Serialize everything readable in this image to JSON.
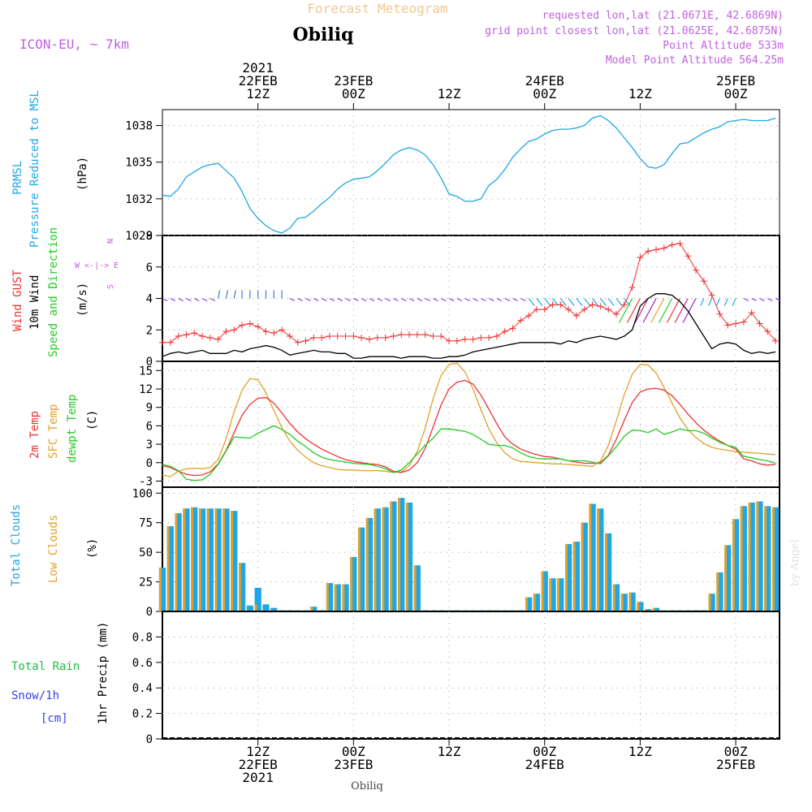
{
  "header": {
    "title": "Forecast Meteogram",
    "location": "Obiliq",
    "model": "ICON-EU, ~ 7km",
    "requested": "requested lon,lat (21.0671E, 42.6869N)",
    "grid_point": "grid point closest lon,lat (21.0625E, 42.6875N)",
    "point_altitude": "Point Altitude 533m",
    "model_altitude": "Model Point Altitude 564.25m"
  },
  "footer": {
    "location": "Obiliq",
    "watermark": "by Angel"
  },
  "colors": {
    "pressure": "#1ea7e6",
    "gust": "#ee3333",
    "wind": "#000000",
    "t2m": "#ee3333",
    "sfc": "#e3a02a",
    "dewpt": "#22cc22",
    "total_clouds": "#1ea7e6",
    "low_clouds": "#e3a02a",
    "rain": "#22bb44",
    "snow": "#3344ee",
    "arrows": "#8a3ad8",
    "title_col": "#f0c890",
    "info_col": "#c060e0"
  },
  "time_axis": {
    "top_labels": [
      {
        "h": 12,
        "lines": [
          "2021",
          "22FEB",
          "12Z"
        ]
      },
      {
        "h": 24,
        "lines": [
          "23FEB",
          "00Z"
        ]
      },
      {
        "h": 36,
        "lines": [
          "12Z"
        ]
      },
      {
        "h": 48,
        "lines": [
          "24FEB",
          "00Z"
        ]
      },
      {
        "h": 60,
        "lines": [
          "12Z"
        ]
      },
      {
        "h": 72,
        "lines": [
          "25FEB",
          "00Z"
        ]
      }
    ],
    "bottom_labels": [
      {
        "h": 12,
        "lines": [
          "12Z",
          "22FEB",
          "2021"
        ]
      },
      {
        "h": 24,
        "lines": [
          "00Z",
          "23FEB"
        ]
      },
      {
        "h": 36,
        "lines": [
          "12Z"
        ]
      },
      {
        "h": 48,
        "lines": [
          "00Z",
          "24FEB"
        ]
      },
      {
        "h": 60,
        "lines": [
          "12Z"
        ]
      },
      {
        "h": 72,
        "lines": [
          "00Z",
          "25FEB"
        ]
      }
    ]
  },
  "chart_data": [
    {
      "type": "line",
      "panel": "pressure",
      "ylabel_lines": [
        "PRMSL",
        "Pressure Reduced to MSL"
      ],
      "unit": "(hPa)",
      "ylim": [
        1029,
        1039.3
      ],
      "yticks": [
        1038,
        1035,
        1032,
        1029
      ],
      "ytick_labels": [
        "1038",
        "1035",
        "1032",
        "1029"
      ],
      "x": [
        0,
        1,
        2,
        3,
        4,
        5,
        6,
        7,
        8,
        9,
        10,
        11,
        12,
        13,
        14,
        15,
        16,
        17,
        18,
        19,
        20,
        21,
        22,
        23,
        24,
        25,
        26,
        27,
        28,
        29,
        30,
        31,
        32,
        33,
        34,
        35,
        36,
        37,
        38,
        39,
        40,
        41,
        42,
        43,
        44,
        45,
        46,
        47,
        48,
        49,
        50,
        51,
        52,
        53,
        54,
        55,
        56,
        57,
        58,
        59,
        60,
        61,
        62,
        63,
        64,
        65,
        66,
        67,
        68,
        69,
        70,
        71,
        72,
        73,
        74,
        75,
        76,
        77
      ],
      "series": [
        {
          "values": [
            1032.3,
            1032.2,
            1032.8,
            1033.8,
            1034.2,
            1034.6,
            1034.8,
            1034.9,
            1034.3,
            1033.7,
            1032.6,
            1031.2,
            1030.4,
            1029.8,
            1029.4,
            1029.2,
            1029.6,
            1030.4,
            1030.5,
            1031.0,
            1031.6,
            1032.1,
            1032.8,
            1033.3,
            1033.6,
            1033.7,
            1033.8,
            1034.3,
            1034.9,
            1035.6,
            1036.0,
            1036.2,
            1036.0,
            1035.6,
            1034.8,
            1033.7,
            1032.4,
            1032.2,
            1031.8,
            1031.8,
            1032.0,
            1033.1,
            1033.6,
            1034.4,
            1035.4,
            1036.1,
            1036.7,
            1036.9,
            1037.3,
            1037.6,
            1037.7,
            1037.7,
            1037.8,
            1038.0,
            1038.6,
            1038.8,
            1038.4,
            1037.8,
            1037.0,
            1036.2,
            1035.3,
            1034.6,
            1034.5,
            1034.8,
            1035.7,
            1036.5,
            1036.6,
            1037.0,
            1037.4,
            1037.7,
            1037.9,
            1038.3,
            1038.4,
            1038.5,
            1038.4,
            1038.4,
            1038.4,
            1038.6
          ]
        }
      ]
    },
    {
      "type": "line",
      "panel": "wind",
      "ylabel_lines": [
        "Wind GUST",
        "10m Wind",
        "Speed and Direction"
      ],
      "unit": "(m/s)",
      "compass": [
        "N",
        "W <-|-> E",
        "S"
      ],
      "ylim": [
        0,
        8
      ],
      "yticks": [
        0,
        2,
        4,
        6,
        8
      ],
      "ytick_labels": [
        "0",
        "2",
        "4",
        "6",
        "8"
      ],
      "x": [
        0,
        1,
        2,
        3,
        4,
        5,
        6,
        7,
        8,
        9,
        10,
        11,
        12,
        13,
        14,
        15,
        16,
        17,
        18,
        19,
        20,
        21,
        22,
        23,
        24,
        25,
        26,
        27,
        28,
        29,
        30,
        31,
        32,
        33,
        34,
        35,
        36,
        37,
        38,
        39,
        40,
        41,
        42,
        43,
        44,
        45,
        46,
        47,
        48,
        49,
        50,
        51,
        52,
        53,
        54,
        55,
        56,
        57,
        58,
        59,
        60,
        61,
        62,
        63,
        64,
        65,
        66,
        67,
        68,
        69,
        70,
        71,
        72,
        73,
        74,
        75,
        76,
        77
      ],
      "series": [
        {
          "name": "Wind GUST",
          "values": [
            1.2,
            1.2,
            1.6,
            1.7,
            1.8,
            1.6,
            1.5,
            1.4,
            1.9,
            2.0,
            2.3,
            2.4,
            2.2,
            1.9,
            1.8,
            2.0,
            1.6,
            1.2,
            1.3,
            1.5,
            1.5,
            1.6,
            1.6,
            1.6,
            1.6,
            1.5,
            1.4,
            1.5,
            1.5,
            1.6,
            1.7,
            1.7,
            1.7,
            1.7,
            1.6,
            1.6,
            1.3,
            1.3,
            1.4,
            1.4,
            1.5,
            1.5,
            1.6,
            1.9,
            2.1,
            2.6,
            2.9,
            3.3,
            3.3,
            3.6,
            3.6,
            3.3,
            2.9,
            3.3,
            3.6,
            3.5,
            3.3,
            3.0,
            3.6,
            4.7,
            6.6,
            7.0,
            7.1,
            7.2,
            7.4,
            7.5,
            6.7,
            5.8,
            5.1,
            4.2,
            3.0,
            2.3,
            2.4,
            2.5,
            3.1,
            2.4,
            1.9,
            1.3
          ]
        },
        {
          "name": "10m Wind",
          "values": [
            0.3,
            0.5,
            0.6,
            0.5,
            0.6,
            0.7,
            0.5,
            0.5,
            0.5,
            0.7,
            0.6,
            0.8,
            0.9,
            1.0,
            0.9,
            0.7,
            0.4,
            0.5,
            0.6,
            0.7,
            0.6,
            0.6,
            0.5,
            0.5,
            0.2,
            0.2,
            0.3,
            0.3,
            0.3,
            0.3,
            0.2,
            0.3,
            0.3,
            0.3,
            0.2,
            0.2,
            0.3,
            0.3,
            0.4,
            0.6,
            0.7,
            0.8,
            0.9,
            1.0,
            1.1,
            1.2,
            1.2,
            1.2,
            1.2,
            1.2,
            1.1,
            1.3,
            1.2,
            1.4,
            1.5,
            1.6,
            1.5,
            1.4,
            1.6,
            2.0,
            3.5,
            4.0,
            4.3,
            4.3,
            4.2,
            3.8,
            3.2,
            2.4,
            1.6,
            0.8,
            1.1,
            1.2,
            1.1,
            0.7,
            0.5,
            0.6,
            0.5,
            0.6
          ]
        }
      ],
      "direction_arrows": "wind direction barbs along 4 m/s line"
    },
    {
      "type": "line",
      "panel": "temperature",
      "ylabel_lines": [
        "2m Temp",
        "SFC Temp",
        "dewpt Temp"
      ],
      "unit": "(C)",
      "ylim": [
        -4,
        16.5
      ],
      "yticks": [
        -3,
        0,
        3,
        6,
        9,
        12,
        15
      ],
      "ytick_labels": [
        "-3",
        "0",
        "3",
        "6",
        "9",
        "12",
        "15"
      ],
      "x": [
        0,
        1,
        2,
        3,
        4,
        5,
        6,
        7,
        8,
        9,
        10,
        11,
        12,
        13,
        14,
        15,
        16,
        17,
        18,
        19,
        20,
        21,
        22,
        23,
        24,
        25,
        26,
        27,
        28,
        29,
        30,
        31,
        32,
        33,
        34,
        35,
        36,
        37,
        38,
        39,
        40,
        41,
        42,
        43,
        44,
        45,
        46,
        47,
        48,
        49,
        50,
        51,
        52,
        53,
        54,
        55,
        56,
        57,
        58,
        59,
        60,
        61,
        62,
        63,
        64,
        65,
        66,
        67,
        68,
        69,
        70,
        71,
        72,
        73,
        74,
        75,
        76,
        77
      ],
      "series": [
        {
          "name": "2m Temp",
          "values": [
            -0.5,
            -0.8,
            -1.4,
            -1.9,
            -2.1,
            -2.0,
            -1.5,
            -0.2,
            2.0,
            4.9,
            7.7,
            9.5,
            10.5,
            10.6,
            9.7,
            8.1,
            6.4,
            5.0,
            3.9,
            3.0,
            2.2,
            1.6,
            1.0,
            0.5,
            0.2,
            0.0,
            -0.2,
            -0.3,
            -0.7,
            -1.4,
            -1.6,
            -1.2,
            0.0,
            2.3,
            5.8,
            9.4,
            12.0,
            13.1,
            13.4,
            12.8,
            11.0,
            8.7,
            6.3,
            4.2,
            3.0,
            2.2,
            1.7,
            1.3,
            1.0,
            0.9,
            0.6,
            0.3,
            0.1,
            -0.1,
            -0.1,
            0.0,
            1.2,
            3.8,
            6.9,
            9.8,
            11.5,
            12.0,
            12.1,
            11.8,
            10.9,
            9.5,
            7.9,
            6.5,
            5.3,
            4.3,
            3.5,
            2.8,
            2.2,
            0.6,
            0.3,
            -0.2,
            -0.4,
            -0.3
          ]
        },
        {
          "name": "SFC Temp",
          "values": [
            -2.0,
            -2.3,
            -1.4,
            -1.0,
            -0.9,
            -1.0,
            -0.8,
            0.5,
            3.9,
            8.3,
            11.8,
            13.7,
            13.5,
            11.4,
            8.5,
            5.7,
            3.5,
            2.0,
            0.9,
            0.0,
            -0.5,
            -0.8,
            -1.1,
            -1.2,
            -1.2,
            -1.3,
            -1.3,
            -1.3,
            -1.4,
            -1.6,
            -1.5,
            -0.5,
            1.8,
            5.6,
            10.4,
            14.2,
            16.0,
            16.2,
            14.8,
            12.0,
            8.6,
            5.5,
            3.2,
            1.6,
            0.6,
            0.2,
            0.1,
            0.0,
            -0.1,
            -0.2,
            -0.2,
            -0.3,
            -0.4,
            -0.5,
            -0.6,
            0.2,
            2.8,
            6.8,
            11.1,
            14.4,
            16.0,
            15.9,
            14.6,
            12.3,
            9.7,
            7.3,
            5.4,
            4.1,
            3.1,
            2.5,
            2.2,
            2.0,
            1.8,
            1.7,
            1.6,
            1.5,
            1.4,
            1.3
          ]
        },
        {
          "name": "dewpt Temp",
          "values": [
            -0.3,
            -0.6,
            -1.3,
            -2.7,
            -2.9,
            -2.8,
            -1.9,
            -0.3,
            1.9,
            4.2,
            4.1,
            4.0,
            4.8,
            5.4,
            6.0,
            5.4,
            4.6,
            3.5,
            2.6,
            1.6,
            0.9,
            0.5,
            0.3,
            0.1,
            -0.1,
            -0.2,
            -0.3,
            -0.6,
            -1.0,
            -1.6,
            -1.2,
            0.0,
            1.4,
            2.8,
            4.0,
            5.5,
            5.5,
            5.3,
            5.1,
            4.6,
            3.8,
            3.0,
            2.8,
            2.8,
            2.4,
            1.6,
            1.0,
            0.7,
            0.6,
            0.6,
            0.6,
            0.3,
            0.3,
            0.3,
            0.1,
            -0.2,
            1.1,
            2.6,
            4.3,
            5.3,
            5.2,
            4.9,
            5.5,
            4.6,
            5.0,
            5.5,
            5.2,
            5.2,
            4.8,
            4.0,
            3.3,
            2.8,
            2.5,
            1.0,
            0.8,
            0.5,
            0.3,
            -0.1
          ]
        }
      ]
    },
    {
      "type": "bar",
      "panel": "clouds",
      "ylabel_lines": [
        "Total Clouds",
        "Low Clouds"
      ],
      "unit": "(%)",
      "ylim": [
        0,
        105
      ],
      "yticks": [
        0,
        25,
        50,
        75,
        100
      ],
      "ytick_labels": [
        "0",
        "25",
        "50",
        "75",
        "100"
      ],
      "x": [
        0,
        1,
        2,
        3,
        4,
        5,
        6,
        7,
        8,
        9,
        10,
        11,
        12,
        13,
        14,
        15,
        16,
        17,
        18,
        19,
        20,
        21,
        22,
        23,
        24,
        25,
        26,
        27,
        28,
        29,
        30,
        31,
        32,
        33,
        34,
        35,
        36,
        37,
        38,
        39,
        40,
        41,
        42,
        43,
        44,
        45,
        46,
        47,
        48,
        49,
        50,
        51,
        52,
        53,
        54,
        55,
        56,
        57,
        58,
        59,
        60,
        61,
        62,
        63,
        64,
        65,
        66,
        67,
        68,
        69,
        70,
        71,
        72,
        73,
        74,
        75,
        76,
        77
      ],
      "series": [
        {
          "name": "Total Clouds",
          "values": [
            37,
            72,
            83,
            87,
            88,
            87,
            87,
            87,
            87,
            85,
            41,
            5,
            20,
            6,
            3,
            1,
            1,
            1,
            1,
            4,
            1,
            24,
            23,
            23,
            46,
            71,
            79,
            87,
            88,
            93,
            96,
            92,
            39,
            1,
            1,
            1,
            1,
            1,
            1,
            1,
            1,
            1,
            1,
            1,
            1,
            1,
            12,
            15,
            34,
            28,
            28,
            57,
            59,
            75,
            91,
            87,
            66,
            23,
            15,
            16,
            8,
            2,
            3,
            1,
            1,
            1,
            1,
            1,
            1,
            15,
            33,
            56,
            78,
            89,
            92,
            93,
            89,
            88
          ]
        },
        {
          "name": "Low Clouds",
          "values": [
            37,
            72,
            83,
            87,
            88,
            87,
            87,
            87,
            87,
            85,
            41,
            1,
            6,
            1,
            1,
            1,
            1,
            1,
            1,
            4,
            1,
            24,
            23,
            23,
            46,
            71,
            79,
            87,
            88,
            93,
            96,
            92,
            39,
            1,
            1,
            1,
            1,
            1,
            1,
            1,
            1,
            1,
            1,
            1,
            1,
            1,
            12,
            15,
            34,
            28,
            28,
            57,
            59,
            75,
            91,
            87,
            66,
            23,
            15,
            16,
            8,
            2,
            3,
            1,
            1,
            1,
            1,
            1,
            1,
            15,
            33,
            56,
            78,
            89,
            92,
            93,
            89,
            88
          ]
        }
      ]
    },
    {
      "type": "bar",
      "panel": "precip",
      "ylabel_lines": [
        "1hr Precip (mm)"
      ],
      "left_labels": [
        "Total Rain",
        "Snow/1h",
        "[cm]"
      ],
      "ylim": [
        0,
        1.0
      ],
      "yticks": [
        0,
        0.2,
        0.4,
        0.6,
        0.8
      ],
      "ytick_labels": [
        "0",
        "0.2",
        "0.4",
        "0.6",
        "0.8"
      ],
      "series": [
        {
          "name": "Total Rain",
          "values": []
        },
        {
          "name": "Snow/1h",
          "values": []
        }
      ]
    }
  ]
}
